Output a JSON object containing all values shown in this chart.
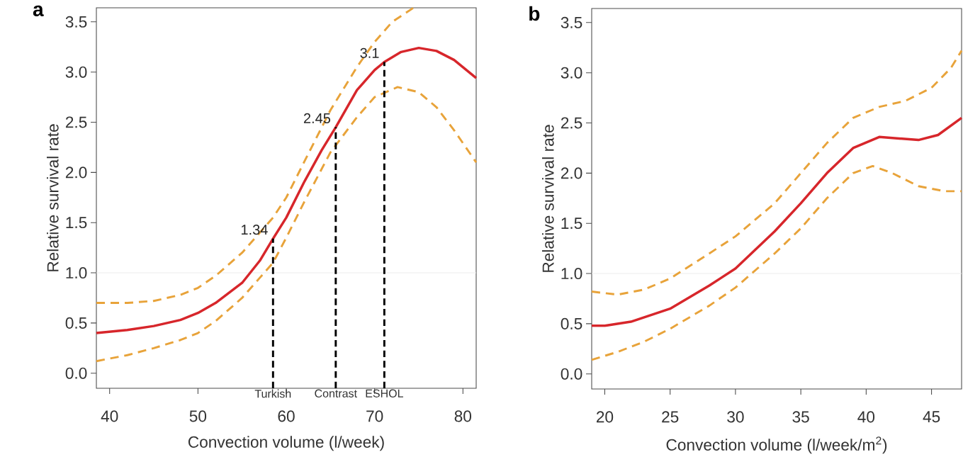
{
  "chart_data": [
    {
      "type": "line",
      "title": "a",
      "xlabel": "Convection volume (l/week)",
      "ylabel": "Relative survival rate",
      "xlim": [
        38.5,
        81.5
      ],
      "ylim": [
        -0.15,
        3.64
      ],
      "xticks": [
        40,
        50,
        60,
        70,
        80
      ],
      "yticks": [
        {
          "value": 0,
          "label": "0.0"
        },
        {
          "value": 0.5,
          "label": "0.5"
        },
        {
          "value": 1,
          "label": "1.0"
        },
        {
          "value": 1.5,
          "label": "1.5"
        },
        {
          "value": 2,
          "label": "2.0"
        },
        {
          "value": 2.5,
          "label": "2.5"
        },
        {
          "value": 3,
          "label": "3.0"
        },
        {
          "value": 3.5,
          "label": "3.5"
        }
      ],
      "ref_lines": [
        {
          "axis": "y",
          "value": 1,
          "color": "#eeeeee"
        }
      ],
      "series": [
        {
          "color": "#d7262b",
          "line_style": "solid",
          "x": [
            38.5,
            42,
            45,
            48,
            50,
            52,
            55,
            57,
            58.5,
            60,
            62,
            64,
            65.6,
            68,
            70,
            71.1,
            73,
            75,
            77,
            79,
            81.5
          ],
          "values": [
            0.4,
            0.43,
            0.47,
            0.53,
            0.6,
            0.7,
            0.9,
            1.12,
            1.34,
            1.55,
            1.9,
            2.22,
            2.45,
            2.82,
            3.02,
            3.1,
            3.2,
            3.24,
            3.21,
            3.12,
            2.94
          ]
        },
        {
          "color": "#e8a33a",
          "line_style": "dashed",
          "x": [
            38.5,
            42,
            45,
            48,
            50,
            52,
            55,
            57,
            58.5,
            60,
            62,
            65,
            68,
            70,
            72,
            74.4
          ],
          "values": [
            0.7,
            0.7,
            0.72,
            0.78,
            0.85,
            0.97,
            1.2,
            1.4,
            1.55,
            1.75,
            2.1,
            2.62,
            3.05,
            3.3,
            3.5,
            3.64
          ]
        },
        {
          "color": "#e8a33a",
          "line_style": "dashed",
          "x": [
            38.5,
            42,
            45,
            48,
            50,
            52,
            55,
            57,
            58.5,
            60,
            62,
            65,
            68,
            70,
            72.6,
            75,
            77,
            79,
            81.5
          ],
          "values": [
            0.12,
            0.18,
            0.25,
            0.33,
            0.4,
            0.52,
            0.75,
            0.95,
            1.1,
            1.35,
            1.7,
            2.2,
            2.55,
            2.75,
            2.85,
            2.8,
            2.65,
            2.42,
            2.1
          ]
        },
        {
          "name": "Turkish",
          "color": "#000000",
          "line_style": "dashed",
          "x": [
            58.5,
            58.5
          ],
          "values": [
            -0.15,
            1.34
          ]
        },
        {
          "name": "Contrast",
          "color": "#000000",
          "line_style": "dashed",
          "x": [
            65.6,
            65.6
          ],
          "values": [
            -0.15,
            2.45
          ]
        },
        {
          "name": "ESHOL",
          "color": "#000000",
          "line_style": "dashed",
          "x": [
            71.1,
            71.1
          ],
          "values": [
            -0.15,
            3.1
          ]
        }
      ],
      "annotations": [
        {
          "text": "1.34",
          "x": 58.5,
          "y": 1.34
        },
        {
          "text": "2.45",
          "x": 65.6,
          "y": 2.45
        },
        {
          "text": "3.1",
          "x": 71.1,
          "y": 3.1
        }
      ]
    },
    {
      "type": "line",
      "title": "b",
      "xlabel": "Convection volume (l/week/m$^{2}$)",
      "ylabel": "Relative survival rate",
      "xlim": [
        19,
        47.3
      ],
      "ylim": [
        -0.15,
        3.64
      ],
      "xticks": [
        20,
        25,
        30,
        35,
        40,
        45
      ],
      "yticks": [
        {
          "value": 0,
          "label": "0.0"
        },
        {
          "value": 0.5,
          "label": "0.5"
        },
        {
          "value": 1,
          "label": "1.0"
        },
        {
          "value": 1.5,
          "label": "1.5"
        },
        {
          "value": 2,
          "label": "2.0"
        },
        {
          "value": 2.5,
          "label": "2.5"
        },
        {
          "value": 3,
          "label": "3.0"
        },
        {
          "value": 3.5,
          "label": "3.5"
        }
      ],
      "ref_lines": [
        {
          "axis": "y",
          "value": 1,
          "color": "#eeeeee"
        }
      ],
      "series": [
        {
          "color": "#d7262b",
          "line_style": "solid",
          "x": [
            19,
            20,
            22,
            25,
            28,
            30,
            33,
            35,
            37,
            39,
            41,
            42,
            44,
            45.5,
            47.3
          ],
          "values": [
            0.48,
            0.48,
            0.52,
            0.65,
            0.88,
            1.05,
            1.42,
            1.7,
            2.0,
            2.25,
            2.36,
            2.35,
            2.33,
            2.38,
            2.55
          ]
        },
        {
          "color": "#e8a33a",
          "line_style": "dashed",
          "x": [
            19,
            21,
            23,
            25,
            28,
            30,
            33,
            35,
            37,
            39,
            41,
            43,
            45,
            46.5,
            47.3
          ],
          "values": [
            0.82,
            0.79,
            0.84,
            0.95,
            1.2,
            1.37,
            1.7,
            2.0,
            2.3,
            2.55,
            2.66,
            2.72,
            2.85,
            3.05,
            3.22
          ]
        },
        {
          "color": "#e8a33a",
          "line_style": "dashed",
          "x": [
            19,
            21,
            23,
            25,
            28,
            30,
            33,
            35,
            37,
            39,
            40.5,
            42,
            44,
            46,
            47.3
          ],
          "values": [
            0.14,
            0.22,
            0.32,
            0.45,
            0.68,
            0.86,
            1.2,
            1.45,
            1.75,
            2.0,
            2.07,
            2.0,
            1.87,
            1.82,
            1.82
          ]
        }
      ]
    }
  ]
}
